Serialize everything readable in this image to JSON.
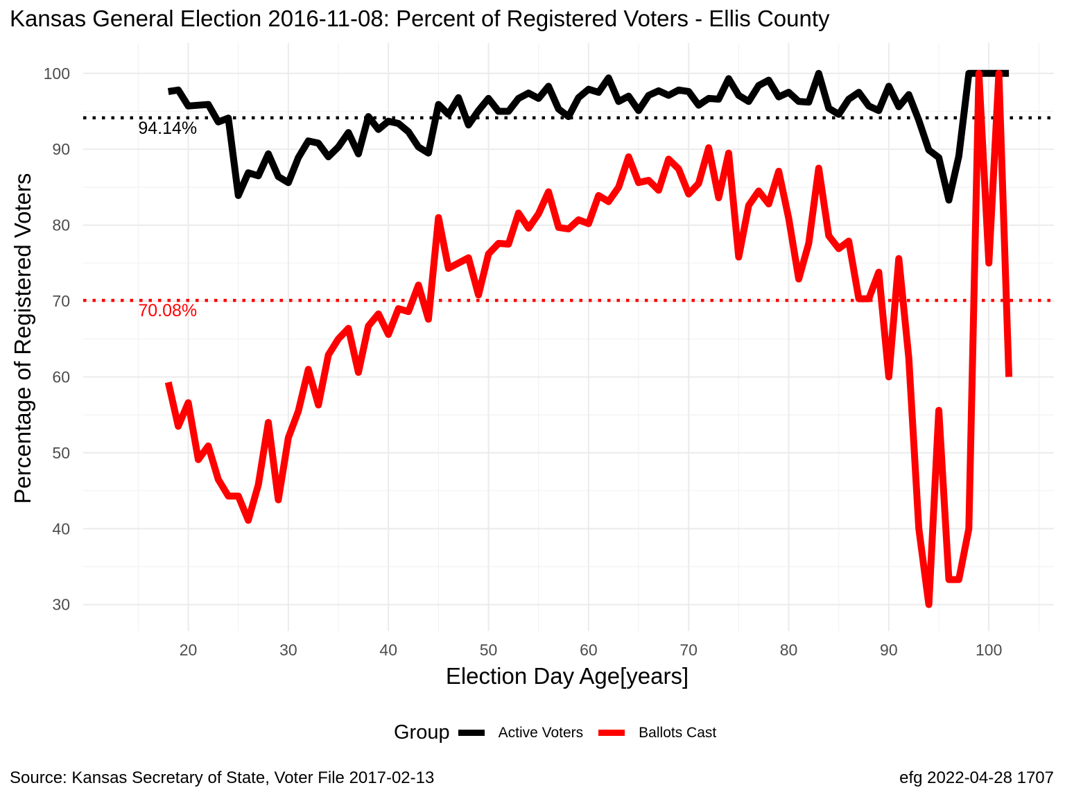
{
  "title": "Kansas General Election 2016-11-08:  Percent of Registered Voters - Ellis County",
  "caption_left": "Source:  Kansas Secretary of State, Voter File  2017-02-13",
  "caption_right": "efg 2022-04-28 1707",
  "legend": {
    "title": "Group",
    "items": [
      {
        "label": "Active Voters",
        "color": "#000000"
      },
      {
        "label": "Ballots Cast",
        "color": "#ff0000"
      }
    ]
  },
  "chart_data": {
    "type": "line",
    "xlabel": "Election Day Age[years]",
    "ylabel": "Percentage of Registered Voters",
    "xlim": [
      9.5,
      106.5
    ],
    "ylim": [
      26.5,
      104
    ],
    "xticks": [
      20,
      30,
      40,
      50,
      60,
      70,
      80,
      90,
      100
    ],
    "yticks": [
      30,
      40,
      50,
      60,
      70,
      80,
      90,
      100
    ],
    "grid": true,
    "legend_position": "bottom",
    "reference_lines": [
      {
        "value": 94.14,
        "label": "94.14%",
        "color": "#000000",
        "style": "dotted"
      },
      {
        "value": 70.08,
        "label": "70.08%",
        "color": "#ff0000",
        "style": "dotted"
      }
    ],
    "x": [
      18,
      19,
      20,
      21,
      22,
      23,
      24,
      25,
      26,
      27,
      28,
      29,
      30,
      31,
      32,
      33,
      34,
      35,
      36,
      37,
      38,
      39,
      40,
      41,
      42,
      43,
      44,
      45,
      46,
      47,
      48,
      49,
      50,
      51,
      52,
      53,
      54,
      55,
      56,
      57,
      58,
      59,
      60,
      61,
      62,
      63,
      64,
      65,
      66,
      67,
      68,
      69,
      70,
      71,
      72,
      73,
      74,
      75,
      76,
      77,
      78,
      79,
      80,
      81,
      82,
      83,
      84,
      85,
      86,
      87,
      88,
      89,
      90,
      91,
      92,
      93,
      94,
      95,
      96,
      97,
      98,
      99,
      100,
      101,
      102
    ],
    "series": [
      {
        "name": "Active Voters",
        "color": "#000000",
        "values": [
          97.6,
          97.8,
          95.7,
          95.8,
          95.9,
          93.6,
          94.1,
          83.9,
          86.9,
          86.5,
          89.4,
          86.4,
          85.6,
          88.9,
          91.1,
          90.8,
          89,
          90.3,
          92.2,
          89.4,
          94.3,
          92.6,
          93.7,
          93.4,
          92.3,
          90.3,
          89.5,
          95.9,
          94.6,
          96.8,
          93.2,
          95.1,
          96.7,
          95,
          95,
          96.7,
          97.4,
          96.7,
          98.3,
          95.3,
          94.3,
          96.8,
          97.9,
          97.5,
          99.4,
          96.3,
          97,
          95.1,
          97.1,
          97.7,
          97.1,
          97.8,
          97.6,
          95.8,
          96.7,
          96.6,
          99.3,
          97.1,
          96.3,
          98.4,
          99.1,
          96.9,
          97.5,
          96.3,
          96.2,
          100,
          95.4,
          94.6,
          96.6,
          97.5,
          95.7,
          95.1,
          98.3,
          95.6,
          97.2,
          93.8,
          89.9,
          88.9,
          83.3,
          89.1,
          100,
          100,
          100,
          100,
          100
        ]
      },
      {
        "name": "Ballots Cast",
        "color": "#ff0000",
        "values": [
          59.3,
          53.5,
          56.6,
          49.1,
          50.9,
          46.5,
          44.3,
          44.3,
          41.1,
          45.8,
          54,
          43.8,
          52,
          55.5,
          61,
          56.3,
          62.9,
          65,
          66.4,
          60.6,
          66.7,
          68.3,
          65.6,
          69,
          68.6,
          72.1,
          67.6,
          81,
          74.3,
          75,
          75.7,
          70.8,
          76.2,
          77.6,
          77.5,
          81.6,
          79.6,
          81.5,
          84.4,
          79.7,
          79.5,
          80.7,
          80.2,
          83.9,
          83.1,
          85,
          89,
          85.6,
          85.9,
          84.6,
          88.7,
          87.4,
          84.1,
          85.5,
          90.2,
          83.6,
          89.5,
          75.8,
          82.6,
          84.5,
          82.8,
          87.1,
          80.9,
          72.9,
          77.6,
          87.5,
          78.6,
          76.9,
          77.9,
          70.3,
          70.3,
          73.8,
          60,
          75.6,
          62.5,
          40,
          30,
          55.6,
          33.3,
          33.3,
          40,
          100,
          75,
          100,
          60
        ]
      }
    ]
  }
}
